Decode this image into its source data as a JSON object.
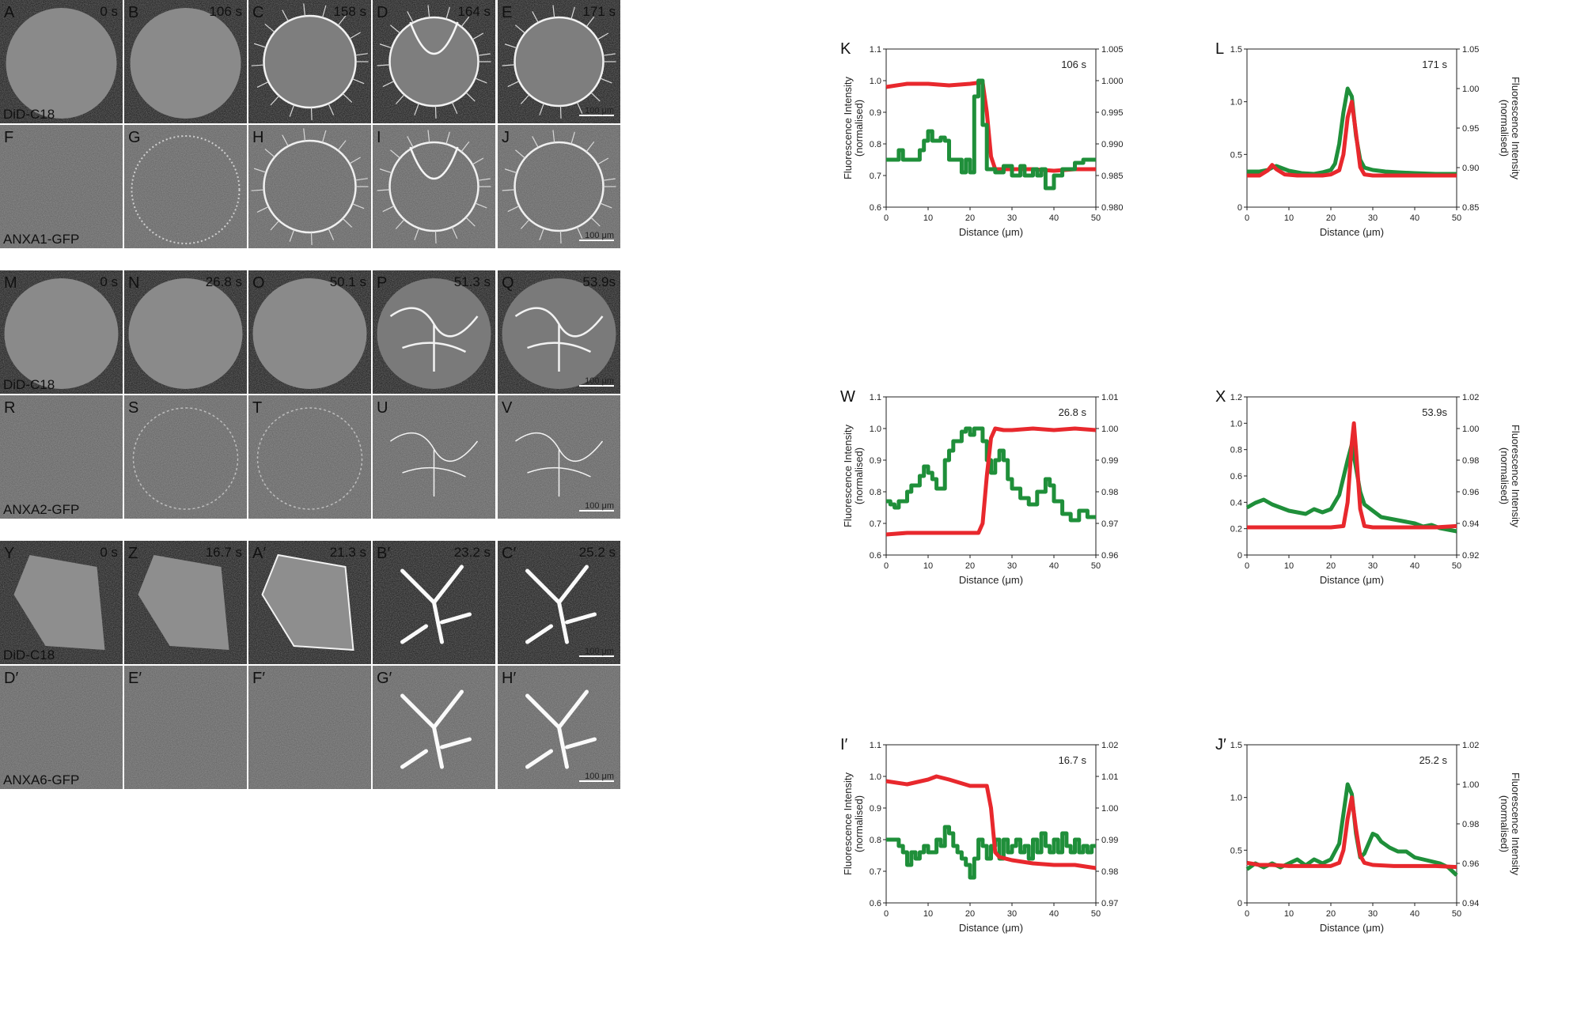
{
  "micrographs": {
    "rows": [
      {
        "panels": [
          {
            "label": "A",
            "time": "0 s"
          },
          {
            "label": "B",
            "time": "106 s"
          },
          {
            "label": "C",
            "time": "158 s"
          },
          {
            "label": "D",
            "time": "164 s"
          },
          {
            "label": "E",
            "time": "171 s",
            "scale": "100 μm"
          }
        ],
        "channel": "DiD-C18",
        "channel_color": "#e8282d"
      },
      {
        "panels": [
          {
            "label": "F",
            "time": ""
          },
          {
            "label": "G",
            "time": ""
          },
          {
            "label": "H",
            "time": ""
          },
          {
            "label": "I",
            "time": ""
          },
          {
            "label": "J",
            "time": "",
            "scale": "100 μm"
          }
        ],
        "channel": "ANXA1-GFP",
        "channel_color": "#1f8f3a"
      },
      {
        "panels": [
          {
            "label": "M",
            "time": "0 s"
          },
          {
            "label": "N",
            "time": "26.8 s"
          },
          {
            "label": "O",
            "time": "50.1 s"
          },
          {
            "label": "P",
            "time": "51.3 s"
          },
          {
            "label": "Q",
            "time": "53.9s",
            "scale": "100 μm"
          }
        ],
        "channel": "DiD-C18",
        "channel_color": "#e8282d"
      },
      {
        "panels": [
          {
            "label": "R",
            "time": ""
          },
          {
            "label": "S",
            "time": ""
          },
          {
            "label": "T",
            "time": ""
          },
          {
            "label": "U",
            "time": ""
          },
          {
            "label": "V",
            "time": "",
            "scale": "100 μm"
          }
        ],
        "channel": "ANXA2-GFP",
        "channel_color": "#1f8f3a"
      },
      {
        "panels": [
          {
            "label": "Y",
            "time": "0 s"
          },
          {
            "label": "Z",
            "time": "16.7 s"
          },
          {
            "label": "A′",
            "time": "21.3 s"
          },
          {
            "label": "B′",
            "time": "23.2 s"
          },
          {
            "label": "C′",
            "time": "25.2 s",
            "scale": "100 μm"
          }
        ],
        "channel": "DiD-C18",
        "channel_color": "#e8282d"
      },
      {
        "panels": [
          {
            "label": "D′",
            "time": ""
          },
          {
            "label": "E′",
            "time": ""
          },
          {
            "label": "F′",
            "time": ""
          },
          {
            "label": "G′",
            "time": ""
          },
          {
            "label": "H′",
            "time": "",
            "scale": "100 μm"
          }
        ],
        "channel": "ANXA6-GFP",
        "channel_color": "#1f8f3a"
      }
    ]
  },
  "colors": {
    "red": "#e8282d",
    "green": "#1f8f3a"
  },
  "chart_data": [
    {
      "type": "line",
      "panel": "K",
      "annotation": "106 s",
      "xlabel": "Distance (μm)",
      "ylabel": "Fluorescence Intensity",
      "ylabel2": "(normalised)",
      "y2label": "",
      "xlim": [
        0,
        50
      ],
      "ylim": [
        0.6,
        1.1
      ],
      "yticks": [
        0.6,
        0.7,
        0.8,
        0.9,
        1.0,
        1.1
      ],
      "y2lim": [
        0.98,
        1.005
      ],
      "y2ticks": [
        0.98,
        0.985,
        0.99,
        0.995,
        1.0,
        1.005
      ],
      "xticks": [
        0,
        10,
        20,
        30,
        40,
        50
      ],
      "series": [
        {
          "color": "red",
          "axis": "left",
          "x": [
            0,
            5,
            10,
            15,
            20,
            23,
            24,
            25,
            26,
            30,
            35,
            40,
            45,
            50
          ],
          "y": [
            0.98,
            0.99,
            0.99,
            0.985,
            0.99,
            0.995,
            0.9,
            0.76,
            0.72,
            0.72,
            0.72,
            0.715,
            0.72,
            0.72
          ]
        },
        {
          "color": "green",
          "axis": "right",
          "step": true,
          "x": [
            0,
            2,
            3,
            4,
            8,
            9,
            10,
            11,
            13,
            14,
            15,
            17,
            18,
            19,
            20,
            21,
            22,
            23,
            24,
            26,
            28,
            30,
            32,
            33,
            35,
            36,
            37,
            38,
            39,
            40,
            42,
            45,
            47,
            50
          ],
          "y": [
            0.9875,
            0.9875,
            0.989,
            0.9875,
            0.989,
            0.9905,
            0.992,
            0.9905,
            0.991,
            0.9905,
            0.9875,
            0.9875,
            0.9855,
            0.9875,
            0.9855,
            0.9975,
            1.0,
            0.993,
            0.986,
            0.9855,
            0.9865,
            0.985,
            0.9865,
            0.985,
            0.986,
            0.985,
            0.986,
            0.983,
            0.983,
            0.985,
            0.986,
            0.987,
            0.9875,
            0.9875
          ]
        }
      ]
    },
    {
      "type": "line",
      "panel": "L",
      "annotation": "171 s",
      "xlabel": "Distance (μm)",
      "ylabel": "",
      "y2label": "Fluorescence Intensity",
      "y2label2": "(normalised)",
      "xlim": [
        0,
        50
      ],
      "ylim": [
        0,
        1.5
      ],
      "yticks": [
        0,
        0.5,
        1.0,
        1.5
      ],
      "y2lim": [
        0.85,
        1.05
      ],
      "y2ticks": [
        0.85,
        0.9,
        0.95,
        1.0,
        1.05
      ],
      "xticks": [
        0,
        10,
        20,
        30,
        40,
        50
      ],
      "series": [
        {
          "color": "green",
          "axis": "right",
          "x": [
            0,
            3,
            5,
            6,
            7,
            8,
            10,
            13,
            16,
            18,
            20,
            21,
            22,
            23,
            24,
            25,
            26,
            27,
            28,
            30,
            33,
            36,
            40,
            45,
            50
          ],
          "y": [
            0.895,
            0.895,
            0.897,
            0.9,
            0.902,
            0.9,
            0.896,
            0.893,
            0.892,
            0.894,
            0.897,
            0.905,
            0.93,
            0.97,
            1.0,
            0.99,
            0.94,
            0.91,
            0.9,
            0.897,
            0.895,
            0.894,
            0.893,
            0.892,
            0.892
          ]
        },
        {
          "color": "red",
          "axis": "left",
          "x": [
            0,
            3,
            5,
            6,
            7,
            9,
            12,
            15,
            18,
            20,
            22,
            23,
            24,
            25,
            26,
            27,
            28,
            30,
            35,
            40,
            45,
            50
          ],
          "y": [
            0.3,
            0.3,
            0.35,
            0.4,
            0.36,
            0.31,
            0.3,
            0.3,
            0.3,
            0.31,
            0.35,
            0.5,
            0.85,
            1.0,
            0.7,
            0.38,
            0.31,
            0.3,
            0.3,
            0.3,
            0.3,
            0.3
          ]
        }
      ]
    },
    {
      "type": "line",
      "panel": "W",
      "annotation": "26.8 s",
      "xlabel": "Distance (μm)",
      "ylabel": "Fluorescence Intensity",
      "ylabel2": "(normalised)",
      "y2label": "",
      "xlim": [
        0,
        50
      ],
      "ylim": [
        0.6,
        1.1
      ],
      "yticks": [
        0.6,
        0.7,
        0.8,
        0.9,
        1.0,
        1.1
      ],
      "y2lim": [
        0.96,
        1.01
      ],
      "y2ticks": [
        0.96,
        0.97,
        0.98,
        0.99,
        1.0,
        1.01
      ],
      "xticks": [
        0,
        10,
        20,
        30,
        40,
        50
      ],
      "series": [
        {
          "color": "green",
          "axis": "right",
          "step": true,
          "x": [
            0,
            1,
            2,
            3,
            5,
            6,
            8,
            9,
            10,
            11,
            12,
            14,
            15,
            16,
            18,
            19,
            20,
            21,
            23,
            24,
            25,
            26,
            27,
            28,
            29,
            30,
            32,
            34,
            36,
            38,
            39,
            40,
            42,
            44,
            46,
            48,
            50
          ],
          "y": [
            0.977,
            0.976,
            0.975,
            0.977,
            0.98,
            0.982,
            0.985,
            0.988,
            0.986,
            0.984,
            0.981,
            0.99,
            0.993,
            0.996,
            0.999,
            1.0,
            0.998,
            1.0,
            0.996,
            0.99,
            0.986,
            0.99,
            0.993,
            0.99,
            0.984,
            0.981,
            0.978,
            0.976,
            0.98,
            0.984,
            0.982,
            0.977,
            0.973,
            0.971,
            0.974,
            0.972,
            0.972
          ]
        },
        {
          "color": "red",
          "axis": "left",
          "x": [
            0,
            5,
            10,
            15,
            20,
            22,
            23,
            24,
            25,
            26,
            28,
            30,
            35,
            40,
            45,
            50
          ],
          "y": [
            0.665,
            0.67,
            0.67,
            0.67,
            0.67,
            0.67,
            0.7,
            0.85,
            0.97,
            1.0,
            0.995,
            0.995,
            1.0,
            0.995,
            1.0,
            0.995
          ]
        }
      ]
    },
    {
      "type": "line",
      "panel": "X",
      "annotation": "53.9s",
      "xlabel": "Distance (μm)",
      "ylabel": "",
      "y2label": "Fluorescence Intensity",
      "y2label2": "(normalised)",
      "xlim": [
        0,
        50
      ],
      "ylim": [
        0,
        1.2
      ],
      "yticks": [
        0,
        0.2,
        0.4,
        0.6,
        0.8,
        1.0,
        1.2
      ],
      "y2lim": [
        0.92,
        1.02
      ],
      "y2ticks": [
        0.92,
        0.94,
        0.96,
        0.98,
        1.0,
        1.02
      ],
      "xticks": [
        0,
        10,
        20,
        30,
        40,
        50
      ],
      "series": [
        {
          "color": "green",
          "axis": "right",
          "x": [
            0,
            2,
            4,
            6,
            8,
            10,
            12,
            14,
            16,
            18,
            20,
            22,
            24,
            25,
            26,
            27,
            28,
            30,
            32,
            34,
            36,
            38,
            40,
            42,
            44,
            46,
            48,
            50
          ],
          "y": [
            0.95,
            0.953,
            0.955,
            0.952,
            0.95,
            0.948,
            0.947,
            0.946,
            0.949,
            0.947,
            0.949,
            0.958,
            0.98,
            0.99,
            0.975,
            0.96,
            0.952,
            0.948,
            0.944,
            0.943,
            0.942,
            0.941,
            0.94,
            0.938,
            0.939,
            0.937,
            0.936,
            0.935
          ]
        },
        {
          "color": "red",
          "axis": "left",
          "x": [
            0,
            5,
            10,
            15,
            20,
            23,
            24,
            25,
            25.5,
            26,
            27,
            28,
            30,
            35,
            40,
            45,
            50
          ],
          "y": [
            0.21,
            0.21,
            0.21,
            0.21,
            0.21,
            0.22,
            0.4,
            0.85,
            1.0,
            0.8,
            0.35,
            0.22,
            0.21,
            0.21,
            0.21,
            0.21,
            0.22
          ]
        }
      ]
    },
    {
      "type": "line",
      "panel": "I′",
      "annotation": "16.7 s",
      "xlabel": "Distance (μm)",
      "ylabel": "Fluorescence Intensity",
      "ylabel2": "(normalised)",
      "y2label": "",
      "xlim": [
        0,
        50
      ],
      "ylim": [
        0.6,
        1.1
      ],
      "yticks": [
        0.6,
        0.7,
        0.8,
        0.9,
        1.0,
        1.1
      ],
      "y2lim": [
        0.97,
        1.02
      ],
      "y2ticks": [
        0.97,
        0.98,
        0.99,
        1.0,
        1.01,
        1.02
      ],
      "xticks": [
        0,
        10,
        20,
        30,
        40,
        50
      ],
      "series": [
        {
          "color": "green",
          "axis": "right",
          "step": true,
          "x": [
            0,
            2,
            3,
            4,
            5,
            6,
            7,
            8,
            9,
            10,
            11,
            12,
            13,
            14,
            15,
            16,
            17,
            18,
            19,
            20,
            21,
            22,
            23,
            24,
            25,
            26,
            27,
            28,
            29,
            30,
            31,
            32,
            33,
            34,
            35,
            36,
            37,
            38,
            39,
            40,
            41,
            42,
            43,
            44,
            45,
            46,
            47,
            48,
            49,
            50
          ],
          "y": [
            0.99,
            0.99,
            0.988,
            0.986,
            0.982,
            0.986,
            0.984,
            0.986,
            0.988,
            0.986,
            0.986,
            0.99,
            0.988,
            0.994,
            0.992,
            0.988,
            0.986,
            0.984,
            0.982,
            0.978,
            0.984,
            0.99,
            0.988,
            0.984,
            0.988,
            0.99,
            0.984,
            0.99,
            0.986,
            0.988,
            0.99,
            0.986,
            0.988,
            0.984,
            0.99,
            0.986,
            0.992,
            0.988,
            0.986,
            0.99,
            0.986,
            0.992,
            0.988,
            0.986,
            0.99,
            0.986,
            0.988,
            0.986,
            0.988,
            0.988
          ]
        },
        {
          "color": "red",
          "axis": "left",
          "x": [
            0,
            5,
            10,
            12,
            15,
            20,
            24,
            25,
            26,
            27,
            30,
            35,
            40,
            45,
            50
          ],
          "y": [
            0.985,
            0.975,
            0.99,
            1.0,
            0.99,
            0.97,
            0.97,
            0.9,
            0.76,
            0.745,
            0.735,
            0.725,
            0.72,
            0.72,
            0.71
          ]
        }
      ]
    },
    {
      "type": "line",
      "panel": "J′",
      "annotation": "25.2 s",
      "xlabel": "Distance (μm)",
      "ylabel": "",
      "y2label": "Fluorescence Intensity",
      "y2label2": "(normalised)",
      "xlim": [
        0,
        50
      ],
      "ylim": [
        0,
        1.5
      ],
      "yticks": [
        0,
        0.5,
        1.0,
        1.5
      ],
      "y2lim": [
        0.94,
        1.02
      ],
      "y2ticks": [
        0.94,
        0.96,
        0.98,
        1.0,
        1.02
      ],
      "xticks": [
        0,
        10,
        20,
        30,
        40,
        50
      ],
      "series": [
        {
          "color": "green",
          "axis": "right",
          "x": [
            0,
            2,
            4,
            6,
            8,
            10,
            12,
            14,
            16,
            18,
            20,
            22,
            23,
            24,
            25,
            26,
            27,
            28,
            29,
            30,
            31,
            32,
            34,
            36,
            38,
            40,
            42,
            44,
            46,
            48,
            50
          ],
          "y": [
            0.957,
            0.96,
            0.958,
            0.96,
            0.958,
            0.96,
            0.962,
            0.959,
            0.962,
            0.96,
            0.962,
            0.97,
            0.985,
            1.0,
            0.995,
            0.975,
            0.963,
            0.965,
            0.97,
            0.975,
            0.974,
            0.971,
            0.968,
            0.966,
            0.966,
            0.963,
            0.962,
            0.961,
            0.96,
            0.958,
            0.954
          ]
        },
        {
          "color": "red",
          "axis": "left",
          "x": [
            0,
            3,
            6,
            10,
            15,
            20,
            22,
            23,
            24,
            25,
            26,
            27,
            28,
            30,
            35,
            40,
            45,
            50
          ],
          "y": [
            0.38,
            0.36,
            0.36,
            0.35,
            0.35,
            0.35,
            0.38,
            0.5,
            0.8,
            1.0,
            0.7,
            0.45,
            0.38,
            0.36,
            0.35,
            0.35,
            0.35,
            0.34
          ]
        }
      ]
    }
  ]
}
